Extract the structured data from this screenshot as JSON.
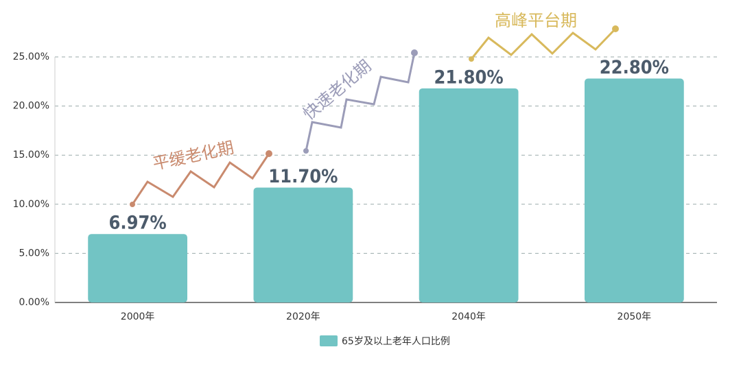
{
  "chart_data": {
    "type": "bar",
    "categories": [
      "2000年",
      "2020年",
      "2040年",
      "2050年"
    ],
    "values": [
      6.97,
      11.7,
      21.8,
      22.8
    ],
    "value_labels": [
      "6.97%",
      "11.70%",
      "21.80%",
      "22.80%"
    ],
    "color": "#72c4c4",
    "legend": {
      "name": "65岁及以上老年人口比例"
    },
    "ylim": [
      0,
      25
    ],
    "yticks": [
      {
        "value": 0,
        "label": "0.00%"
      },
      {
        "value": 5,
        "label": "5.00%"
      },
      {
        "value": 10,
        "label": "10.00%"
      },
      {
        "value": 15,
        "label": "15.00%"
      },
      {
        "value": 20,
        "label": "20.00%"
      },
      {
        "value": 25,
        "label": "25.00%"
      }
    ],
    "grid": true,
    "annotations": [
      {
        "text": "平缓老化期",
        "color": "#c98a6e"
      },
      {
        "text": "快速老化期",
        "color": "#9b9cb8"
      },
      {
        "text": "高峰平台期",
        "color": "#d8b95c"
      }
    ]
  }
}
